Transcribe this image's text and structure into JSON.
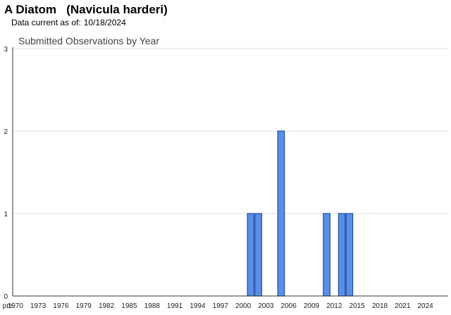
{
  "header": {
    "common_name": "A Diatom",
    "scientific_name": "(Navicula harderi)",
    "data_current_label": "Data current as of:",
    "data_current_date": "10/18/2024"
  },
  "colors": {
    "bar_fill": "#5b8ee6",
    "bar_stroke": "#1f4fa8",
    "grid": "#e0e0e0",
    "axis": "#333333",
    "title": "#444444"
  },
  "chart_data": {
    "type": "bar",
    "title": "Submitted Observations by Year",
    "xlabel": "",
    "ylabel": "",
    "ylim": [
      0,
      3
    ],
    "yticks": [
      0,
      1,
      2,
      3
    ],
    "grid": true,
    "legend": "none",
    "categories": [
      "pre 1970",
      "1970",
      "1971",
      "1972",
      "1973",
      "1974",
      "1975",
      "1976",
      "1977",
      "1978",
      "1979",
      "1980",
      "1981",
      "1982",
      "1983",
      "1984",
      "1985",
      "1986",
      "1987",
      "1988",
      "1989",
      "1990",
      "1991",
      "1992",
      "1993",
      "1994",
      "1995",
      "1996",
      "1997",
      "1998",
      "1999",
      "2000",
      "2001",
      "2002",
      "2003",
      "2004",
      "2005",
      "2006",
      "2007",
      "2008",
      "2009",
      "2010",
      "2011",
      "2012",
      "2013",
      "2014",
      "2015",
      "2016",
      "2017",
      "2018",
      "2019",
      "2020",
      "2021",
      "2022",
      "2023",
      "2024"
    ],
    "values": [
      0,
      0,
      0,
      0,
      0,
      0,
      0,
      0,
      0,
      0,
      0,
      0,
      0,
      0,
      0,
      0,
      0,
      0,
      0,
      0,
      0,
      0,
      0,
      0,
      0,
      0,
      0,
      0,
      0,
      0,
      0,
      0,
      1,
      1,
      0,
      0,
      2,
      0,
      0,
      0,
      0,
      0,
      1,
      0,
      1,
      1,
      0,
      0,
      0,
      0,
      0,
      0,
      0,
      0,
      0,
      0
    ],
    "tick_labels": [
      "pre",
      "1970",
      "1973",
      "1976",
      "1979",
      "1982",
      "1985",
      "1988",
      "1991",
      "1994",
      "1997",
      "2000",
      "2003",
      "2006",
      "2009",
      "2012",
      "2015",
      "2018",
      "2021",
      "2024"
    ]
  }
}
